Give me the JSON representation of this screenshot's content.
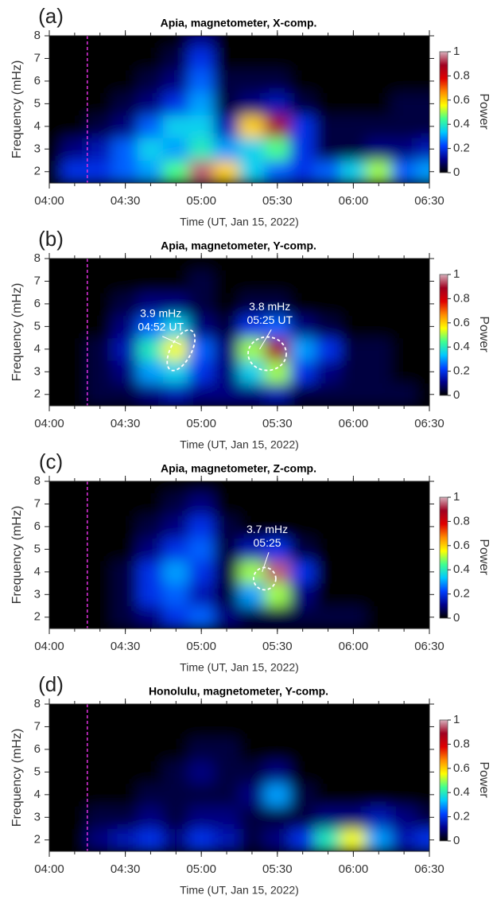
{
  "chart_data": [
    {
      "type": "heatmap",
      "panel": "(a)",
      "title": "Apia, magnetometer, X-comp.",
      "xlabel": "Time (UT,  Jan 15, 2022)",
      "ylabel": "Frequency (mHz)",
      "colorbar_label": "Power",
      "x": [
        240,
        250,
        260,
        270,
        280,
        290,
        300,
        310,
        320,
        330,
        340,
        350,
        360,
        370,
        380,
        390
      ],
      "y": [
        2,
        3,
        4,
        5,
        6,
        7,
        8
      ],
      "z": [
        [
          0,
          0.2,
          0.2,
          0.25,
          0.3,
          0.45,
          0.95,
          0.6,
          0.35,
          0.25,
          0.2,
          0.25,
          0.35,
          0.5,
          0.25,
          0.3
        ],
        [
          0,
          0.1,
          0.15,
          0.25,
          0.35,
          0.3,
          0.4,
          0.3,
          0.35,
          0.45,
          0.2,
          0.05,
          0.05,
          0.1,
          0.1,
          0.15
        ],
        [
          0,
          0,
          0.05,
          0.1,
          0.25,
          0.35,
          0.35,
          0.15,
          0.6,
          0.9,
          0.2,
          0.05,
          0.05,
          0.05,
          0.05,
          0.05
        ],
        [
          0,
          0,
          0,
          0.05,
          0.1,
          0.2,
          0.3,
          0.05,
          0.1,
          0.15,
          0.05,
          0,
          0,
          0,
          0.05,
          0.05
        ],
        [
          0,
          0,
          0,
          0,
          0.05,
          0.1,
          0.25,
          0.05,
          0.05,
          0.05,
          0,
          0,
          0,
          0,
          0,
          0
        ],
        [
          0,
          0,
          0,
          0,
          0,
          0.05,
          0.2,
          0,
          0,
          0,
          0,
          0,
          0,
          0,
          0,
          0
        ],
        [
          0,
          0,
          0,
          0,
          0,
          0,
          0.1,
          0,
          0,
          0,
          0,
          0,
          0,
          0,
          0,
          0
        ]
      ],
      "xlim": [
        240,
        390
      ],
      "xticks": [
        {
          "value": 240,
          "label": "04:00"
        },
        {
          "value": 270,
          "label": "04:30"
        },
        {
          "value": 300,
          "label": "05:00"
        },
        {
          "value": 330,
          "label": "05:30"
        },
        {
          "value": 360,
          "label": "06:00"
        },
        {
          "value": 390,
          "label": "06:30"
        }
      ],
      "ylim": [
        1.5,
        8
      ],
      "yticks": [
        2,
        3,
        4,
        5,
        6,
        7,
        8
      ],
      "clim": [
        0,
        1
      ],
      "cticks": [
        0,
        0.2,
        0.4,
        0.6,
        0.8,
        1
      ],
      "event_line": 255,
      "event_color": "#e030e0",
      "annotations": [],
      "colormap": [
        "#000000",
        "#00008c",
        "#0040ff",
        "#00c8ff",
        "#40ff90",
        "#ffff00",
        "#ff8c00",
        "#e00000",
        "#a00020",
        "#d8b0bc"
      ]
    },
    {
      "type": "heatmap",
      "panel": "(b)",
      "title": "Apia, magnetometer, Y-comp.",
      "xlabel": "Time (UT,  Jan 15, 2022)",
      "ylabel": "Frequency (mHz)",
      "colorbar_label": "Power",
      "x": [
        240,
        250,
        260,
        270,
        280,
        290,
        300,
        310,
        320,
        330,
        340,
        350,
        360,
        370,
        380,
        390
      ],
      "y": [
        2,
        3,
        4,
        5,
        6,
        7,
        8
      ],
      "z": [
        [
          0,
          0,
          0.05,
          0.05,
          0.1,
          0.15,
          0.1,
          0.1,
          0.1,
          0.15,
          0.05,
          0.05,
          0.05,
          0.05,
          0.05,
          0
        ],
        [
          0,
          0,
          0.05,
          0.1,
          0.3,
          0.35,
          0.2,
          0.1,
          0.35,
          0.5,
          0.2,
          0.1,
          0.05,
          0.05,
          0,
          0
        ],
        [
          0,
          0,
          0.05,
          0.15,
          0.4,
          0.55,
          0.25,
          0.1,
          0.5,
          0.9,
          0.3,
          0.2,
          0.05,
          0.05,
          0,
          0
        ],
        [
          0,
          0,
          0,
          0.1,
          0.25,
          0.35,
          0.1,
          0.05,
          0.2,
          0.25,
          0.1,
          0.05,
          0,
          0,
          0,
          0
        ],
        [
          0,
          0,
          0,
          0.05,
          0.1,
          0.1,
          0.05,
          0,
          0.05,
          0.05,
          0,
          0,
          0,
          0,
          0,
          0
        ],
        [
          0,
          0,
          0,
          0,
          0,
          0,
          0.05,
          0,
          0,
          0,
          0,
          0,
          0,
          0,
          0,
          0
        ],
        [
          0,
          0,
          0,
          0,
          0,
          0,
          0,
          0,
          0,
          0,
          0,
          0,
          0,
          0,
          0,
          0
        ]
      ],
      "xlim": [
        240,
        390
      ],
      "xticks": [
        {
          "value": 240,
          "label": "04:00"
        },
        {
          "value": 270,
          "label": "04:30"
        },
        {
          "value": 300,
          "label": "05:00"
        },
        {
          "value": 330,
          "label": "05:30"
        },
        {
          "value": 360,
          "label": "06:00"
        },
        {
          "value": 390,
          "label": "06:30"
        }
      ],
      "ylim": [
        1.5,
        8
      ],
      "yticks": [
        2,
        3,
        4,
        5,
        6,
        7,
        8
      ],
      "clim": [
        0,
        1
      ],
      "cticks": [
        0,
        0.2,
        0.4,
        0.6,
        0.8,
        1
      ],
      "event_line": 255,
      "event_color": "#e030e0",
      "annotations": [
        {
          "lines": [
            "3.9 mHz",
            "04:52 UT"
          ]
        },
        {
          "lines": [
            "3.8 mHz",
            "05:25 UT"
          ]
        }
      ],
      "colormap": [
        "#000000",
        "#00008c",
        "#0040ff",
        "#00c8ff",
        "#40ff90",
        "#ffff00",
        "#ff8c00",
        "#e00000",
        "#a00020",
        "#d8b0bc"
      ]
    },
    {
      "type": "heatmap",
      "panel": "(c)",
      "title": "Apia, magnetometer, Z-comp.",
      "xlabel": "Time (UT,  Jan 15, 2022)",
      "ylabel": "Frequency (mHz)",
      "colorbar_label": "Power",
      "x": [
        240,
        250,
        260,
        270,
        280,
        290,
        300,
        310,
        320,
        330,
        340,
        350,
        360,
        370,
        380,
        390
      ],
      "y": [
        2,
        3,
        4,
        5,
        6,
        7,
        8
      ],
      "z": [
        [
          0,
          0,
          0,
          0.05,
          0.1,
          0.2,
          0.25,
          0.1,
          0.05,
          0.05,
          0.05,
          0.05,
          0.05,
          0,
          0,
          0
        ],
        [
          0,
          0,
          0,
          0.05,
          0.2,
          0.25,
          0.15,
          0.05,
          0.3,
          0.5,
          0.1,
          0,
          0,
          0,
          0,
          0
        ],
        [
          0,
          0,
          0,
          0.05,
          0.2,
          0.3,
          0.2,
          0.05,
          0.5,
          0.95,
          0.2,
          0,
          0,
          0,
          0,
          0
        ],
        [
          0,
          0,
          0,
          0,
          0.1,
          0.2,
          0.25,
          0.05,
          0.15,
          0.2,
          0.05,
          0,
          0,
          0,
          0,
          0
        ],
        [
          0,
          0,
          0,
          0,
          0.05,
          0.1,
          0.2,
          0.05,
          0,
          0,
          0,
          0,
          0,
          0,
          0,
          0
        ],
        [
          0,
          0,
          0,
          0,
          0,
          0.05,
          0.1,
          0,
          0,
          0,
          0,
          0,
          0,
          0,
          0,
          0
        ],
        [
          0,
          0,
          0,
          0,
          0,
          0,
          0,
          0,
          0,
          0,
          0,
          0,
          0,
          0,
          0,
          0
        ]
      ],
      "xlim": [
        240,
        390
      ],
      "xticks": [
        {
          "value": 240,
          "label": "04:00"
        },
        {
          "value": 270,
          "label": "04:30"
        },
        {
          "value": 300,
          "label": "05:00"
        },
        {
          "value": 330,
          "label": "05:30"
        },
        {
          "value": 360,
          "label": "06:00"
        },
        {
          "value": 390,
          "label": "06:30"
        }
      ],
      "ylim": [
        1.5,
        8
      ],
      "yticks": [
        2,
        3,
        4,
        5,
        6,
        7,
        8
      ],
      "clim": [
        0,
        1
      ],
      "cticks": [
        0,
        0.2,
        0.4,
        0.6,
        0.8,
        1
      ],
      "event_line": 255,
      "event_color": "#e030e0",
      "annotations": [
        {
          "lines": [
            "3.7 mHz",
            "05:25"
          ]
        }
      ],
      "colormap": [
        "#000000",
        "#00008c",
        "#0040ff",
        "#00c8ff",
        "#40ff90",
        "#ffff00",
        "#ff8c00",
        "#e00000",
        "#a00020",
        "#d8b0bc"
      ]
    },
    {
      "type": "heatmap",
      "panel": "(d)",
      "title": "Honolulu, magnetometer, Y-comp.",
      "xlabel": "Time (UT,  Jan 15, 2022)",
      "ylabel": "Frequency (mHz)",
      "colorbar_label": "Power",
      "x": [
        240,
        250,
        260,
        270,
        280,
        290,
        300,
        310,
        320,
        330,
        340,
        350,
        360,
        370,
        380,
        390
      ],
      "y": [
        2,
        3,
        4,
        5,
        6,
        7,
        8
      ],
      "z": [
        [
          0,
          0,
          0.1,
          0.15,
          0.2,
          0.1,
          0.2,
          0.15,
          0.05,
          0.1,
          0.2,
          0.4,
          0.55,
          0.3,
          0.15,
          0.2
        ],
        [
          0,
          0,
          0.05,
          0.05,
          0.1,
          0.05,
          0.1,
          0.1,
          0.05,
          0.05,
          0.05,
          0.1,
          0.1,
          0.15,
          0.1,
          0.05
        ],
        [
          0,
          0,
          0,
          0,
          0.05,
          0.05,
          0.05,
          0.05,
          0.1,
          0.3,
          0.05,
          0,
          0,
          0,
          0,
          0
        ],
        [
          0,
          0,
          0,
          0,
          0,
          0.05,
          0.1,
          0.05,
          0.05,
          0.1,
          0,
          0,
          0,
          0,
          0,
          0
        ],
        [
          0,
          0,
          0,
          0,
          0,
          0,
          0.05,
          0.05,
          0,
          0,
          0,
          0,
          0,
          0,
          0,
          0
        ],
        [
          0,
          0,
          0,
          0,
          0,
          0,
          0,
          0,
          0,
          0,
          0,
          0,
          0,
          0,
          0,
          0
        ],
        [
          0,
          0,
          0,
          0,
          0,
          0,
          0,
          0,
          0,
          0,
          0,
          0,
          0,
          0,
          0,
          0
        ]
      ],
      "xlim": [
        240,
        390
      ],
      "xticks": [
        {
          "value": 240,
          "label": "04:00"
        },
        {
          "value": 270,
          "label": "04:30"
        },
        {
          "value": 300,
          "label": "05:00"
        },
        {
          "value": 330,
          "label": "05:30"
        },
        {
          "value": 360,
          "label": "06:00"
        },
        {
          "value": 390,
          "label": "06:30"
        }
      ],
      "ylim": [
        1.5,
        8
      ],
      "yticks": [
        2,
        3,
        4,
        5,
        6,
        7,
        8
      ],
      "clim": [
        0,
        1
      ],
      "cticks": [
        0,
        0.2,
        0.4,
        0.6,
        0.8,
        1
      ],
      "event_line": 255,
      "event_color": "#e030e0",
      "annotations": [],
      "colormap": [
        "#000000",
        "#00008c",
        "#0040ff",
        "#00c8ff",
        "#40ff90",
        "#ffff00",
        "#ff8c00",
        "#e00000",
        "#a00020",
        "#d8b0bc"
      ]
    }
  ]
}
